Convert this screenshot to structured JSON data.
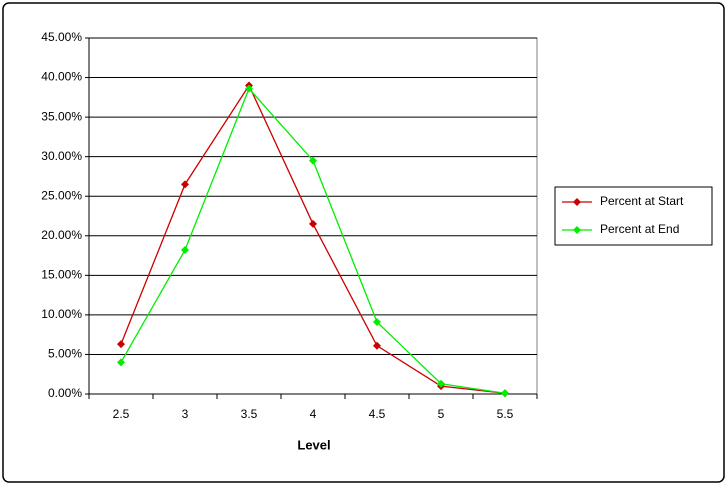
{
  "chart_data": {
    "type": "line",
    "x_label": "Level",
    "categories": [
      "2.5",
      "3",
      "3.5",
      "4",
      "4.5",
      "5",
      "5.5"
    ],
    "series": [
      {
        "name": "Percent at Start",
        "color": "#cc0000",
        "values": [
          6.3,
          26.5,
          39.0,
          21.5,
          6.1,
          1.0,
          0.1
        ]
      },
      {
        "name": "Percent at End",
        "color": "#00ee00",
        "values": [
          4.0,
          18.2,
          38.6,
          29.5,
          9.1,
          1.3,
          0.1
        ]
      }
    ],
    "ylim": [
      0,
      45
    ],
    "yticks": [
      {
        "value": 0,
        "label": "0.00%"
      },
      {
        "value": 5,
        "label": "5.00%"
      },
      {
        "value": 10,
        "label": "10.00%"
      },
      {
        "value": 15,
        "label": "15.00%"
      },
      {
        "value": 20,
        "label": "20.00%"
      },
      {
        "value": 25,
        "label": "25.00%"
      },
      {
        "value": 30,
        "label": "30.00%"
      },
      {
        "value": 35,
        "label": "35.00%"
      },
      {
        "value": 40,
        "label": "40.00%"
      },
      {
        "value": 45,
        "label": "45.00%"
      }
    ],
    "grid": true,
    "legend": "right"
  }
}
